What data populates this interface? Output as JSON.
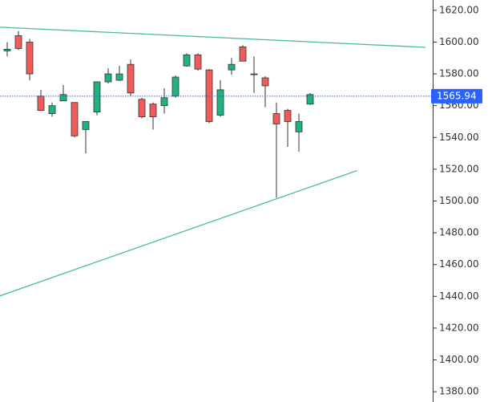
{
  "chart_data": {
    "type": "candlestick",
    "open": [
      1594.5,
      1604,
      1600,
      1566,
      1555,
      1563,
      1562,
      1545,
      1556,
      1575,
      1576,
      1586,
      1564,
      1561,
      1560,
      1566,
      1585,
      1592,
      1582.5,
      1554,
      1582.5,
      1597,
      1580,
      1577.5,
      1555,
      1557,
      1543.5,
      1561
    ],
    "high": [
      1600,
      1607,
      1602,
      1570,
      1562,
      1573,
      1562,
      1550,
      1575,
      1583.5,
      1585,
      1589,
      1565,
      1562,
      1571,
      1579,
      1593,
      1593,
      1583,
      1576,
      1590,
      1598,
      1591,
      1578.5,
      1562,
      1558,
      1555,
      1568
    ],
    "low": [
      1591,
      1595,
      1576,
      1557,
      1553,
      1563,
      1540,
      1530,
      1554,
      1574,
      1575.5,
      1566,
      1552,
      1545,
      1555,
      1565,
      1584.5,
      1582,
      1549,
      1553,
      1579.5,
      1588,
      1568,
      1559,
      1502,
      1534,
      1531,
      1560.5
    ],
    "close": [
      1595.5,
      1596,
      1580,
      1557,
      1560,
      1567,
      1541,
      1550,
      1575,
      1580,
      1580,
      1568,
      1553,
      1553,
      1565,
      1578,
      1592,
      1583,
      1550,
      1570,
      1586,
      1588,
      1579.5,
      1572.5,
      1548.5,
      1550,
      1550,
      1567
    ],
    "up_color": "#21b27d",
    "down_color": "#ef5b59",
    "last_price": 1565.94,
    "last_price_color": "#2962ff",
    "trendlines": [
      {
        "x": [
          -0.64,
          37.3
        ],
        "y": [
          1609.4,
          1596.7
        ],
        "color": "#4dbba4"
      },
      {
        "x": [
          -0.64,
          31.2
        ],
        "y": [
          1440.3,
          1519.2
        ],
        "color": "#4dbba4"
      }
    ],
    "ylim": [
      1373.5,
      1626.5
    ],
    "yticks": [
      {
        "value": 1380,
        "label": "1380.00"
      },
      {
        "value": 1400,
        "label": "1400.00"
      },
      {
        "value": 1420,
        "label": "1420.00"
      },
      {
        "value": 1440,
        "label": "1440.00"
      },
      {
        "value": 1460,
        "label": "1460.00"
      },
      {
        "value": 1480,
        "label": "1480.00"
      },
      {
        "value": 1500,
        "label": "1500.00"
      },
      {
        "value": 1520,
        "label": "1520.00"
      },
      {
        "value": 1540,
        "label": "1540.00"
      },
      {
        "value": 1560,
        "label": "1560.00"
      },
      {
        "value": 1580,
        "label": "1580.00"
      },
      {
        "value": 1600,
        "label": "1600.00"
      },
      {
        "value": 1620,
        "label": "1620.00"
      }
    ]
  }
}
